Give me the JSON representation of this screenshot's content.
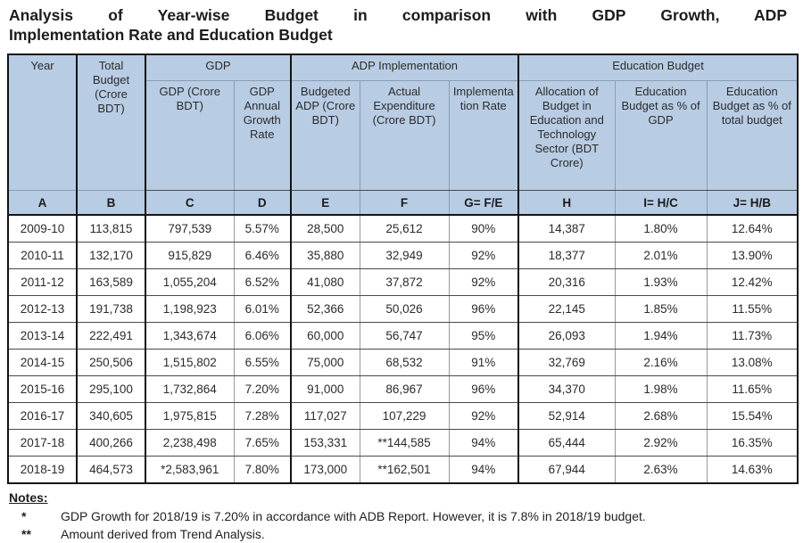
{
  "title": {
    "line1": "Analysis of Year-wise Budget in comparison with GDP Growth, ADP",
    "line2": "Implementation Rate and Education Budget"
  },
  "table": {
    "groups": {
      "year": "Year",
      "total_budget": "Total Budget (Crore BDT)",
      "gdp": "GDP",
      "adp": "ADP Implementation",
      "education": "Education Budget"
    },
    "subheaders": [
      "GDP (Crore BDT)",
      "GDP Annual Growth Rate",
      "Budgeted ADP (Crore BDT)",
      "Actual Expenditure (Crore BDT)",
      "Implementation Rate",
      "Allocation of Budget in Education and Technology Sector (BDT Crore)",
      "Education Budget as % of GDP",
      "Education Budget as % of total budget"
    ],
    "letters": [
      "A",
      "B",
      "C",
      "D",
      "E",
      "F",
      "G= F/E",
      "H",
      "I= H/C",
      "J= H/B"
    ],
    "rows": [
      [
        "2009-10",
        "113,815",
        "797,539",
        "5.57%",
        "28,500",
        "25,612",
        "90%",
        "14,387",
        "1.80%",
        "12.64%"
      ],
      [
        "2010-11",
        "132,170",
        "915,829",
        "6.46%",
        "35,880",
        "32,949",
        "92%",
        "18,377",
        "2.01%",
        "13.90%"
      ],
      [
        "2011-12",
        "163,589",
        "1,055,204",
        "6.52%",
        "41,080",
        "37,872",
        "92%",
        "20,316",
        "1.93%",
        "12.42%"
      ],
      [
        "2012-13",
        "191,738",
        "1,198,923",
        "6.01%",
        "52,366",
        "50,026",
        "96%",
        "22,145",
        "1.85%",
        "11.55%"
      ],
      [
        "2013-14",
        "222,491",
        "1,343,674",
        "6.06%",
        "60,000",
        "56,747",
        "95%",
        "26,093",
        "1.94%",
        "11.73%"
      ],
      [
        "2014-15",
        "250,506",
        "1,515,802",
        "6.55%",
        "75,000",
        "68,532",
        "91%",
        "32,769",
        "2.16%",
        "13.08%"
      ],
      [
        "2015-16",
        "295,100",
        "1,732,864",
        "7.20%",
        "91,000",
        "86,967",
        "96%",
        "34,370",
        "1.98%",
        "11.65%"
      ],
      [
        "2016-17",
        "340,605",
        "1,975,815",
        "7.28%",
        "117,027",
        "107,229",
        "92%",
        "52,914",
        "2.68%",
        "15.54%"
      ],
      [
        "2017-18",
        "400,266",
        "2,238,498",
        "7.65%",
        "153,331",
        "**144,585",
        "94%",
        "65,444",
        "2.92%",
        "16.35%"
      ],
      [
        "2018-19",
        "464,573",
        "*2,583,961",
        "7.80%",
        "173,000",
        "**162,501",
        "94%",
        "67,944",
        "2.63%",
        "14.63%"
      ]
    ]
  },
  "notes": {
    "heading": "Notes:",
    "items": [
      {
        "marker": "*",
        "text": "GDP Growth for 2018/19 is 7.20% in accordance with ADB Report. However, it is 7.8% in 2018/19 budget."
      },
      {
        "marker": "**",
        "text": "Amount derived from Trend Analysis."
      }
    ]
  },
  "colors": {
    "header_bg": "#b8cce4",
    "group_border": "#141414",
    "inner_border": "#8b9bb4",
    "text": "#2b2b2b"
  }
}
